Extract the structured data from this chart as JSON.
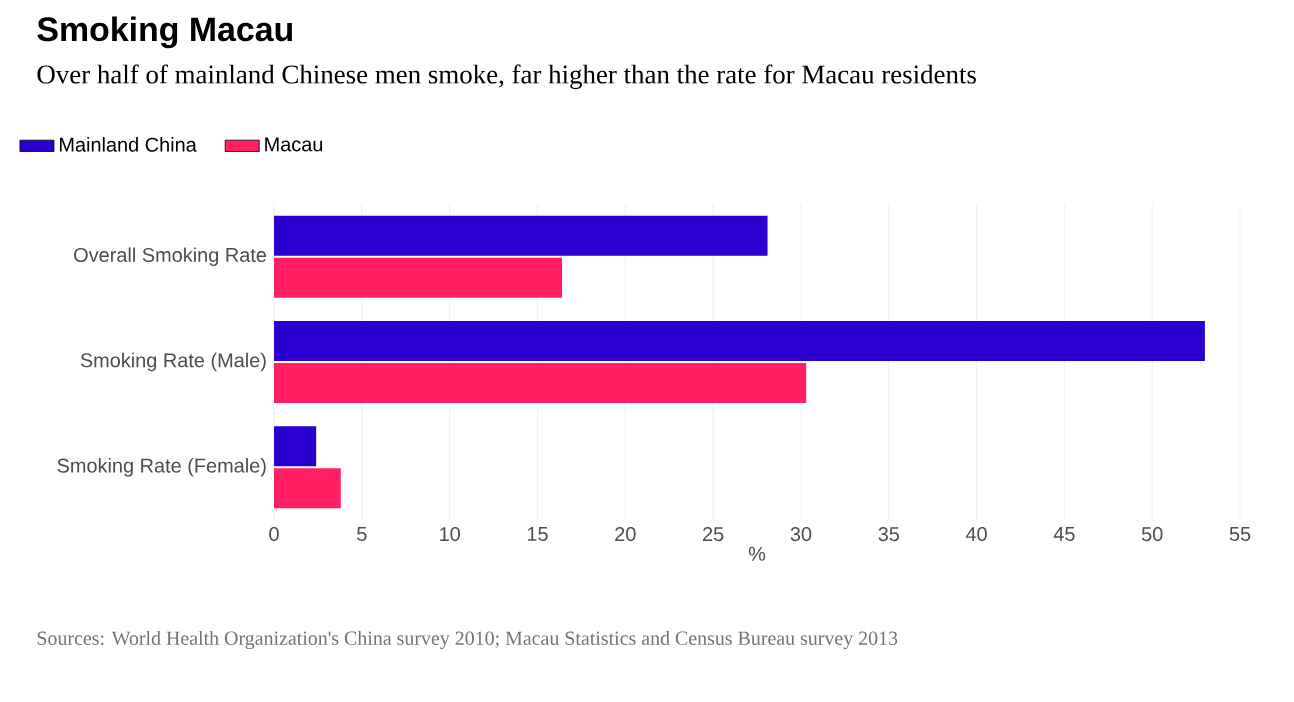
{
  "chart_data": {
    "type": "bar",
    "orientation": "horizontal",
    "title": "Smoking Macau",
    "subtitle": "Over half of mainland Chinese men smoke, far higher than the rate for Macau residents",
    "xlabel": "%",
    "categories": [
      "Overall Smoking Rate",
      "Smoking Rate (Male)",
      "Smoking Rate (Female)"
    ],
    "series": [
      {
        "name": "Mainland China",
        "color": "#2a00d0",
        "values": [
          28.1,
          53.0,
          2.4
        ]
      },
      {
        "name": "Macau",
        "color": "#ff1f62",
        "values": [
          16.4,
          30.3,
          3.8
        ]
      }
    ],
    "xlim": [
      0,
      55
    ],
    "xticks": [
      0,
      5,
      10,
      15,
      20,
      25,
      30,
      35,
      40,
      45,
      50,
      55
    ],
    "grid": "x",
    "legend": "top left",
    "annotations": [
      "Sources: World Health Organization's China survey 2010; Macau Statistics and Census Bureau survey 2013"
    ]
  }
}
